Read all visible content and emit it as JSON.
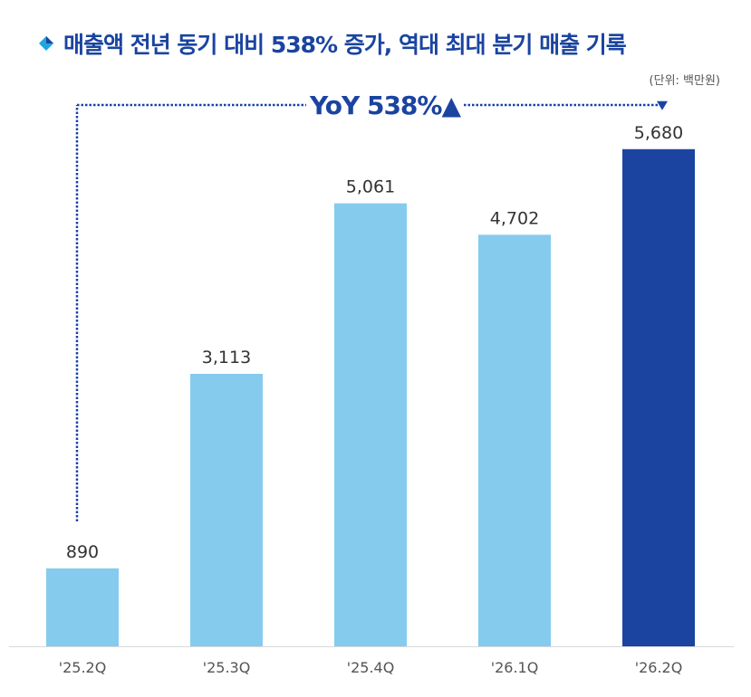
{
  "title": "매출액 전년 동기 대비 538% 증가, 역대 최대 분기 매출 기록",
  "unit_label": "(단위: 백만원)",
  "annotation": "YoY 538%▲",
  "colors": {
    "title": "#1a44a0",
    "bar": "#85cbee",
    "highlight": "#1a44a0",
    "annotation": "#1a44a0",
    "diamond_a": "#1fa6e0",
    "diamond_b": "#1a44a0"
  },
  "chart_data": {
    "type": "bar",
    "title": "매출액 전년 동기 대비 538% 증가, 역대 최대 분기 매출 기록",
    "unit": "(단위: 백만원)",
    "categories": [
      "'25.2Q",
      "'25.3Q",
      "'25.4Q",
      "'26.1Q",
      "'26.2Q"
    ],
    "values": [
      890,
      3113,
      5061,
      4702,
      5680
    ],
    "value_labels": [
      "890",
      "3,113",
      "5,061",
      "4,702",
      "5,680"
    ],
    "highlight_index": 4,
    "ylim": [
      0,
      6350
    ],
    "grid": false,
    "legend": "none"
  }
}
